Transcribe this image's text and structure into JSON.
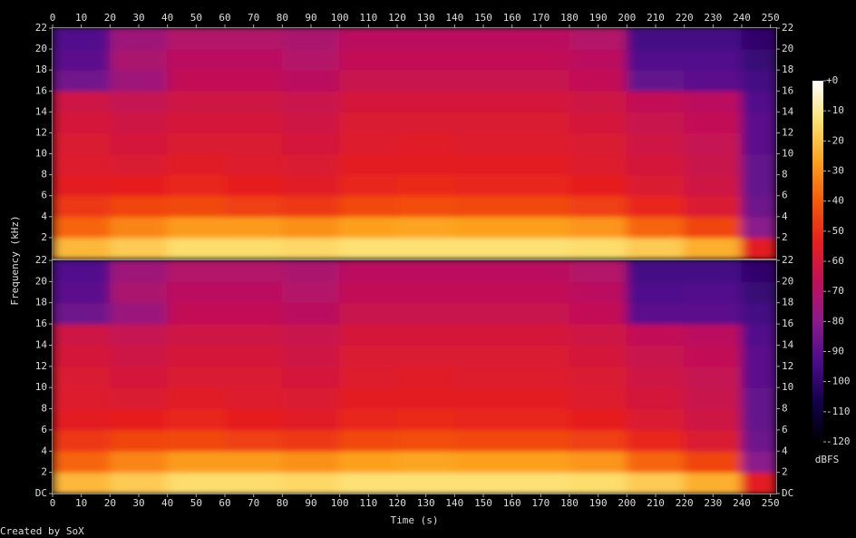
{
  "chart_data": {
    "type": "heatmap",
    "x_label": "Time (s)",
    "y_label": "Frequency (kHz)",
    "footer": "Created by SoX",
    "xlim": [
      0,
      252
    ],
    "xticks": [
      0,
      10,
      20,
      30,
      40,
      50,
      60,
      70,
      80,
      90,
      100,
      110,
      120,
      130,
      140,
      150,
      160,
      170,
      180,
      190,
      200,
      210,
      220,
      230,
      240,
      250
    ],
    "time_bins": [
      0,
      20,
      40,
      60,
      80,
      100,
      120,
      140,
      160,
      180,
      200,
      220,
      240,
      252
    ],
    "freq_bins": [
      0,
      2,
      4,
      6,
      8,
      10,
      12,
      14,
      16,
      18,
      20,
      22
    ],
    "colorbar": {
      "label": "dBFS",
      "lim": [
        -120,
        0
      ],
      "ticks": [
        {
          "value": 0,
          "label": "+0"
        },
        -10,
        -20,
        -30,
        -40,
        -50,
        -60,
        -70,
        -80,
        -90,
        -100,
        -110,
        -120
      ],
      "colors": [
        "#000000",
        "#14004a",
        "#4b0c8c",
        "#8a1a8c",
        "#c0105a",
        "#e8201c",
        "#f55a0a",
        "#fca21e",
        "#fde070",
        "#ffffff"
      ]
    },
    "channels": [
      {
        "ylim": [
          0,
          22
        ],
        "yticks": [
          2,
          4,
          6,
          8,
          10,
          12,
          14,
          16,
          18,
          20,
          22
        ],
        "values": [
          [
            -22,
            -38,
            -48,
            -55,
            -57,
            -58,
            -60,
            -62,
            -85,
            -90,
            -92
          ],
          [
            -18,
            -32,
            -45,
            -54,
            -58,
            -60,
            -62,
            -65,
            -75,
            -72,
            -75
          ],
          [
            -14,
            -28,
            -44,
            -52,
            -56,
            -58,
            -60,
            -62,
            -66,
            -68,
            -70
          ],
          [
            -14,
            -28,
            -46,
            -54,
            -57,
            -58,
            -60,
            -62,
            -66,
            -68,
            -70
          ],
          [
            -15,
            -30,
            -48,
            -56,
            -58,
            -60,
            -62,
            -64,
            -68,
            -70,
            -72
          ],
          [
            -13,
            -27,
            -44,
            -52,
            -55,
            -57,
            -58,
            -60,
            -64,
            -66,
            -68
          ],
          [
            -13,
            -26,
            -43,
            -51,
            -55,
            -56,
            -58,
            -60,
            -64,
            -66,
            -68
          ],
          [
            -13,
            -27,
            -44,
            -52,
            -55,
            -57,
            -58,
            -60,
            -64,
            -66,
            -68
          ],
          [
            -13,
            -27,
            -44,
            -52,
            -55,
            -57,
            -58,
            -60,
            -64,
            -66,
            -68
          ],
          [
            -14,
            -29,
            -46,
            -54,
            -57,
            -58,
            -60,
            -62,
            -66,
            -68,
            -70
          ],
          [
            -18,
            -38,
            -52,
            -58,
            -60,
            -62,
            -64,
            -66,
            -88,
            -92,
            -95
          ],
          [
            -24,
            -45,
            -58,
            -62,
            -64,
            -65,
            -66,
            -68,
            -90,
            -92,
            -95
          ],
          [
            -55,
            -80,
            -86,
            -88,
            -88,
            -90,
            -90,
            -92,
            -95,
            -98,
            -100
          ]
        ]
      },
      {
        "ylim": [
          0,
          22
        ],
        "yticks": [
          {
            "value": 0,
            "label": "DC"
          },
          2,
          4,
          6,
          8,
          10,
          12,
          14,
          16,
          18,
          20,
          22
        ],
        "values": [
          [
            -22,
            -38,
            -48,
            -55,
            -57,
            -58,
            -60,
            -62,
            -86,
            -90,
            -92
          ],
          [
            -18,
            -32,
            -45,
            -54,
            -58,
            -60,
            -62,
            -65,
            -76,
            -72,
            -75
          ],
          [
            -14,
            -28,
            -44,
            -52,
            -56,
            -58,
            -60,
            -62,
            -66,
            -68,
            -70
          ],
          [
            -14,
            -28,
            -46,
            -54,
            -57,
            -58,
            -60,
            -62,
            -66,
            -68,
            -70
          ],
          [
            -15,
            -30,
            -48,
            -56,
            -58,
            -60,
            -62,
            -64,
            -68,
            -70,
            -72
          ],
          [
            -13,
            -27,
            -44,
            -52,
            -55,
            -57,
            -58,
            -60,
            -64,
            -66,
            -68
          ],
          [
            -13,
            -26,
            -43,
            -51,
            -55,
            -56,
            -58,
            -60,
            -64,
            -66,
            -68
          ],
          [
            -13,
            -27,
            -44,
            -52,
            -55,
            -57,
            -58,
            -60,
            -64,
            -66,
            -68
          ],
          [
            -13,
            -27,
            -44,
            -52,
            -55,
            -57,
            -58,
            -60,
            -64,
            -66,
            -68
          ],
          [
            -14,
            -29,
            -46,
            -54,
            -57,
            -58,
            -60,
            -62,
            -66,
            -68,
            -70
          ],
          [
            -18,
            -38,
            -52,
            -58,
            -60,
            -62,
            -64,
            -66,
            -90,
            -93,
            -95
          ],
          [
            -24,
            -45,
            -58,
            -62,
            -64,
            -65,
            -66,
            -68,
            -90,
            -92,
            -95
          ],
          [
            -55,
            -80,
            -86,
            -88,
            -88,
            -90,
            -90,
            -92,
            -95,
            -98,
            -100
          ]
        ]
      }
    ]
  }
}
